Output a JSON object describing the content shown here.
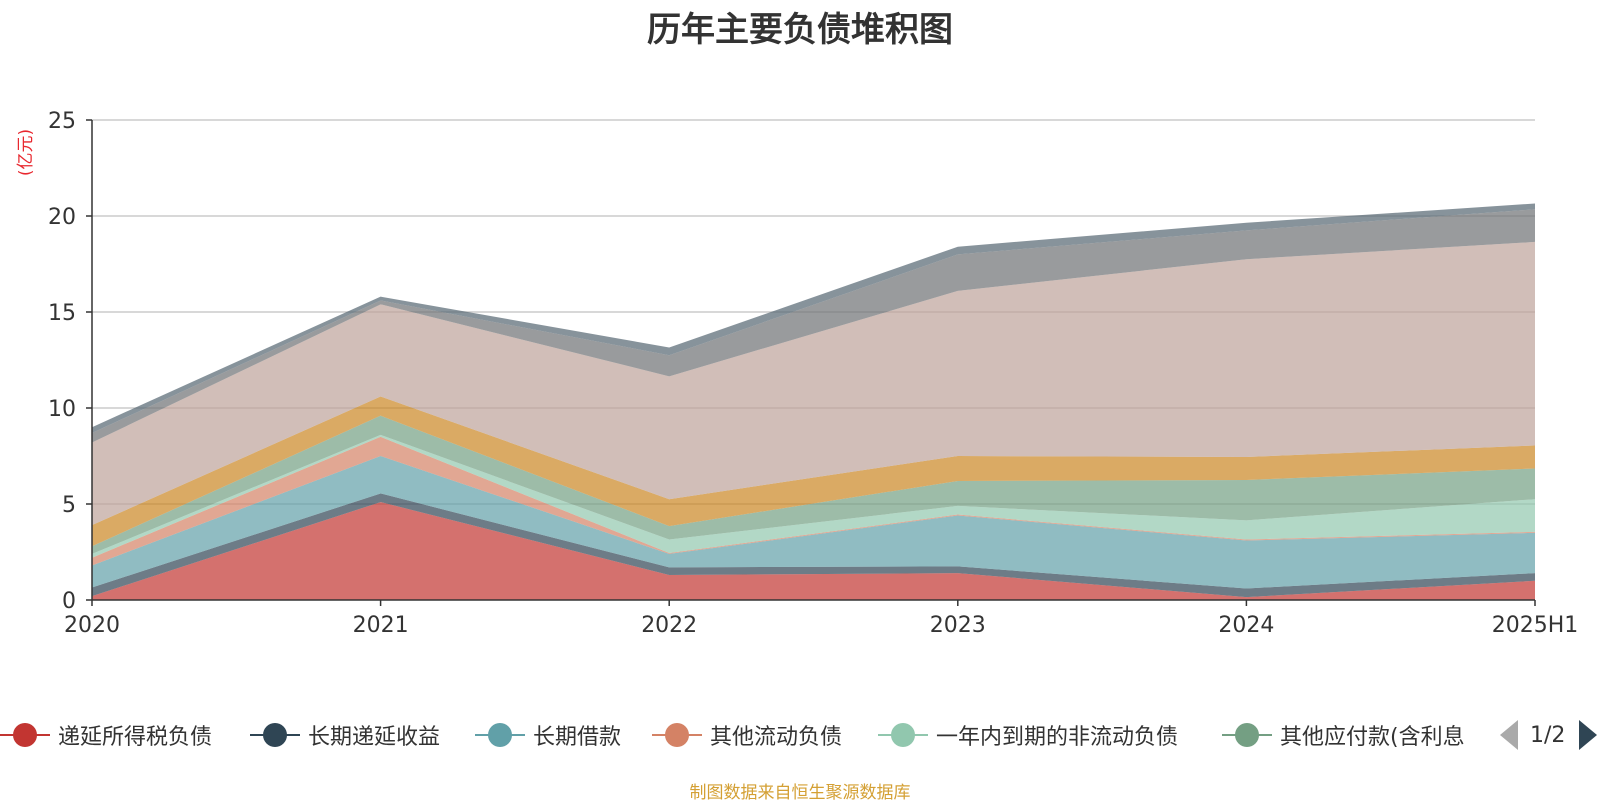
{
  "title": "历年主要负债堆积图",
  "source_note": "制图数据来自恒生聚源数据库",
  "pager": {
    "text": "1/2"
  },
  "colors": {
    "axis_label": "#e8282f",
    "grid": "#cccccc",
    "axis": "#333333",
    "source": "#d4a034"
  },
  "legend": [
    {
      "label": "递延所得税负债",
      "color": "#c23531",
      "icon": "circle-line-icon"
    },
    {
      "label": "长期递延收益",
      "color": "#2f4554",
      "icon": "circle-line-icon"
    },
    {
      "label": "长期借款",
      "color": "#61a0a8",
      "icon": "circle-line-icon"
    },
    {
      "label": "其他流动负债",
      "color": "#d48265",
      "icon": "circle-line-icon"
    },
    {
      "label": "一年内到期的非流动负债",
      "color": "#91c7ae",
      "icon": "circle-line-icon"
    },
    {
      "label": "其他应付款(含利息",
      "color": "#749f83",
      "icon": "circle-line-icon"
    }
  ],
  "chart_data": {
    "type": "area",
    "stacked": true,
    "title": "历年主要负债堆积图",
    "ylabel": "(亿元)",
    "xlabel": "",
    "categories": [
      "2020",
      "2021",
      "2022",
      "2023",
      "2024",
      "2025H1"
    ],
    "ylim": [
      0,
      25
    ],
    "yticks": [
      0,
      5,
      10,
      15,
      20,
      25
    ],
    "grid": true,
    "legend_position": "bottom",
    "series": [
      {
        "name": "递延所得税负债",
        "color": "#c23531",
        "values": [
          0.2,
          5.1,
          1.3,
          1.4,
          0.15,
          1.0
        ]
      },
      {
        "name": "长期递延收益",
        "color": "#2f4554",
        "values": [
          0.45,
          0.45,
          0.4,
          0.35,
          0.45,
          0.4
        ]
      },
      {
        "name": "长期借款",
        "color": "#61a0a8",
        "values": [
          1.15,
          1.95,
          0.7,
          2.65,
          2.5,
          2.1
        ]
      },
      {
        "name": "其他流动负债",
        "color": "#d48265",
        "values": [
          0.4,
          1.0,
          0.05,
          0.05,
          0.05,
          0.05
        ]
      },
      {
        "name": "一年内到期的非流动负债",
        "color": "#91c7ae",
        "values": [
          0.2,
          0.1,
          0.7,
          0.45,
          1.0,
          1.7
        ]
      },
      {
        "name": "其他应付款(含利息",
        "color": "#749f83",
        "values": [
          0.4,
          1.0,
          0.7,
          1.3,
          2.1,
          1.6
        ]
      },
      {
        "color": "#ca8622",
        "values": [
          1.1,
          1.0,
          1.4,
          1.3,
          1.2,
          1.2
        ]
      },
      {
        "color": "#bda29a",
        "values": [
          4.3,
          4.8,
          6.4,
          8.6,
          10.3,
          10.6
        ]
      },
      {
        "color": "#6e7074",
        "values": [
          0.5,
          0.2,
          1.1,
          1.9,
          1.5,
          1.7
        ]
      },
      {
        "color": "#546570",
        "values": [
          0.3,
          0.2,
          0.4,
          0.4,
          0.4,
          0.3
        ]
      }
    ]
  }
}
